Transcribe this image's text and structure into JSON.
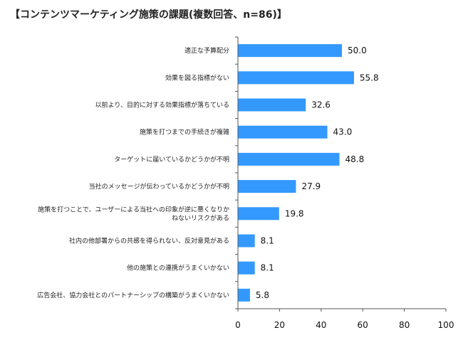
{
  "chart_data": {
    "type": "bar",
    "orientation": "horizontal",
    "title": "【コンテンツマーケティング施策の課題(複数回答、n=86)】",
    "categories": [
      "適正な予算配分",
      "効果を図る指標がない",
      "以前より、目的に対する効果指標が落ちている",
      "施策を打つまでの手続きが複雑",
      "ターゲットに届いているかどうかが不明",
      "当社のメッセージが伝わっているかどうかが不明",
      "施策を打つことで、ユーザーによる当社への印象が逆に悪くなりかねないリスクがある",
      "社内の他部署からの共感を得られない、反対意見がある",
      "他の施策との連携がうまくいかない",
      "広告会社、協力会社とのパートナーシップの構築がうまくいかない"
    ],
    "category_lines": [
      [
        "適正な予算配分"
      ],
      [
        "効果を図る指標がない"
      ],
      [
        "以前より、目的に対する効果指標が落ちている"
      ],
      [
        "施策を打つまでの手続きが複雑"
      ],
      [
        "ターゲットに届いているかどうかが不明"
      ],
      [
        "当社のメッセージが伝わっているかどうかが不明"
      ],
      [
        "施策を打つことで、ユーザーによる当社への印象が逆に悪くなりか",
        "ねないリスクがある"
      ],
      [
        "社内の他部署からの共感を得られない、反対意見がある"
      ],
      [
        "他の施策との連携がうまくいかない"
      ],
      [
        "広告会社、協力会社とのパートナーシップの構築がうまくいかない"
      ]
    ],
    "values": [
      50.0,
      55.8,
      32.6,
      43.0,
      48.8,
      27.9,
      19.8,
      8.1,
      8.1,
      5.8
    ],
    "value_labels": [
      "50.0",
      "55.8",
      "32.6",
      "43.0",
      "48.8",
      "27.9",
      "19.8",
      "8.1",
      "8.1",
      "5.8"
    ],
    "xlim": [
      0,
      100
    ],
    "xticks": [
      0,
      20,
      40,
      60,
      80,
      100
    ],
    "xlabel": "",
    "ylabel": "",
    "grid": false,
    "legend": "none",
    "bar_color": "#3399ff"
  }
}
